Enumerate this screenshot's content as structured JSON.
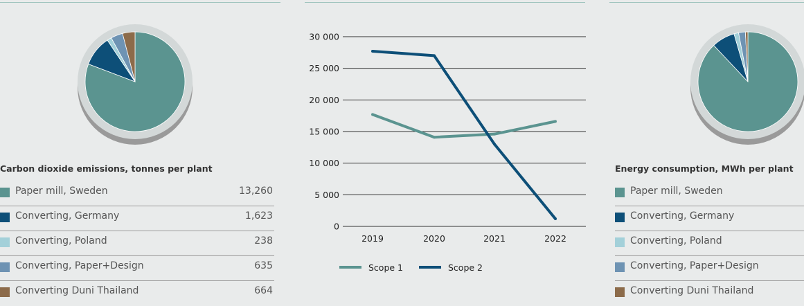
{
  "chart_data": [
    {
      "type": "pie",
      "title": "Carbon dioxide emissions, tonnes per plant",
      "categories": [
        "Paper mill, Sweden",
        "Converting, Germany",
        "Converting, Poland",
        "Converting, Paper+Design",
        "Converting Duni Thailand"
      ],
      "values": [
        13260,
        1623,
        238,
        635,
        664
      ],
      "value_labels": [
        "13,260",
        "1,623",
        "238",
        "635",
        "664"
      ],
      "colors": [
        "#5b9490",
        "#0d4f78",
        "#a3d0d9",
        "#6e93b3",
        "#8c6b4a"
      ]
    },
    {
      "type": "line",
      "x": [
        "2019",
        "2020",
        "2021",
        "2022"
      ],
      "series": [
        {
          "name": "Scope 1",
          "values": [
            17700,
            14100,
            14600,
            16600
          ],
          "color": "#5b9490"
        },
        {
          "name": "Scope 2",
          "values": [
            27700,
            27000,
            13000,
            1200
          ],
          "color": "#0d4f78"
        }
      ],
      "yticks": [
        "0",
        "5 000",
        "10 000",
        "15 000",
        "20 000",
        "25 000",
        "30 000"
      ],
      "ylim": [
        0,
        30000
      ],
      "grid": true,
      "legend": "bottom"
    },
    {
      "type": "pie",
      "title": "Energy consumption, MWh per plant",
      "categories": [
        "Paper mill, Sweden",
        "Converting, Germany",
        "Converting, Poland",
        "Converting, Paper+Design",
        "Converting Duni Thailand"
      ],
      "values": [
        88,
        7.5,
        1.5,
        2.2,
        0.8
      ],
      "colors": [
        "#5b9490",
        "#0d4f78",
        "#a3d0d9",
        "#6e93b3",
        "#8c6b4a"
      ]
    }
  ]
}
